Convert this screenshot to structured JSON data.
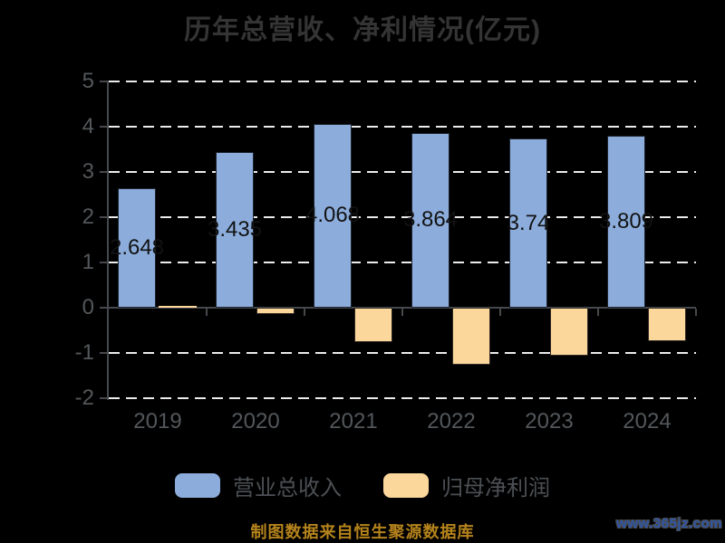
{
  "title": "历年总营收、净利情况(亿元)",
  "chart_data": {
    "type": "bar",
    "categories": [
      "2019",
      "2020",
      "2021",
      "2022",
      "2023",
      "2024"
    ],
    "series": [
      {
        "name": "营业总收入",
        "color": "#8caddc",
        "values": [
          2.648,
          3.435,
          4.068,
          3.864,
          3.74,
          3.809
        ],
        "labels": [
          "2.648",
          "3.435",
          "4.068",
          "3.864",
          "3.74",
          "3.809"
        ]
      },
      {
        "name": "归母净利润",
        "color": "#fcd79b",
        "values": [
          0.03,
          -0.14,
          -0.75,
          -1.25,
          -1.06,
          -0.73
        ],
        "labels": [
          "",
          "",
          "",
          "",
          "",
          ""
        ]
      }
    ],
    "ylim": [
      -2,
      5
    ],
    "yticks": [
      5,
      4,
      3,
      2,
      1,
      0,
      -1,
      -2
    ],
    "xlabel": "",
    "ylabel": "",
    "grid": "horizontal-dashed-white",
    "legend_position": "bottom"
  },
  "footer": {
    "source_note": "制图数据来自恒生聚源数据库",
    "watermark": "www.365jz.com"
  },
  "colors": {
    "background": "#000000",
    "grid": "#ececec",
    "axis": "#45494e",
    "tick_label": "#53575b",
    "title": "#343434",
    "bar_label": "#121212",
    "revenue_bar": "#8caddc",
    "profit_bar": "#fcd79b",
    "footer_note": "#b5831c",
    "watermark": "#2d55a5"
  }
}
